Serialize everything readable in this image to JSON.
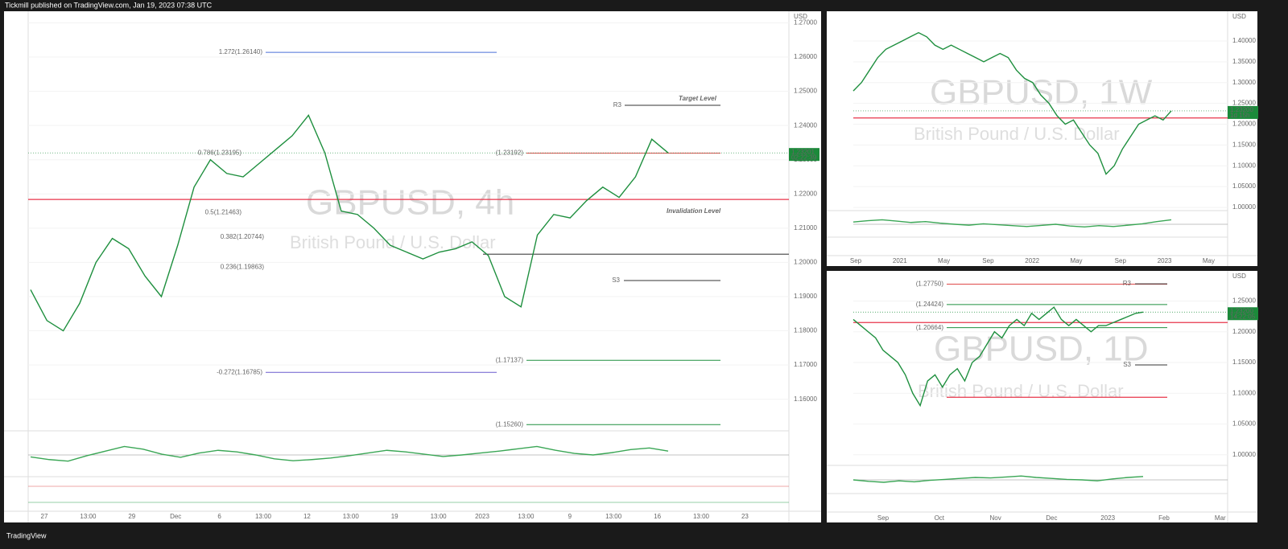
{
  "header": {
    "text": "Tickmill published on TradingView.com, Jan 19, 2023 07:38 UTC"
  },
  "footer": {
    "brand": "TradingView"
  },
  "chart_data": [
    {
      "type": "line",
      "title": "GBPUSD, 4h",
      "subtitle": "British Pound / U.S. Dollar",
      "currency": "USD",
      "color": "#1e8f3e",
      "values": [
        1.192,
        1.183,
        1.18,
        1.188,
        1.2,
        1.207,
        1.204,
        1.196,
        1.19,
        1.205,
        1.222,
        1.23,
        1.226,
        1.225,
        1.229,
        1.233,
        1.237,
        1.243,
        1.232,
        1.215,
        1.214,
        1.21,
        1.205,
        1.203,
        1.201,
        1.203,
        1.204,
        1.206,
        1.202,
        1.19,
        1.187,
        1.208,
        1.214,
        1.213,
        1.218,
        1.222,
        1.219,
        1.225,
        1.236,
        1.232
      ],
      "ylim": [
        1.151,
        1.2734
      ],
      "yticks": [
        {
          "value": 1.16,
          "label": "1.16000"
        },
        {
          "value": 1.17,
          "label": "1.17000"
        },
        {
          "value": 1.18,
          "label": "1.18000"
        },
        {
          "value": 1.19,
          "label": "1.19000"
        },
        {
          "value": 1.2,
          "label": "1.20000"
        },
        {
          "value": 1.21,
          "label": "1.21000"
        },
        {
          "value": 1.22,
          "label": "1.22000"
        },
        {
          "value": 1.23,
          "label": "1.23000"
        },
        {
          "value": 1.24,
          "label": "1.24000"
        },
        {
          "value": 1.25,
          "label": "1.25000"
        },
        {
          "value": 1.26,
          "label": "1.26000"
        },
        {
          "value": 1.27,
          "label": "1.27000"
        }
      ],
      "time_labels": [
        "27",
        "13:00",
        "29",
        "Dec",
        "6",
        "13:00",
        "12",
        "13:00",
        "19",
        "13:00",
        "2023",
        "13:00",
        "9",
        "13:00",
        "16",
        "13:00",
        "23"
      ],
      "last": {
        "value": 1.23201,
        "countdown": "02:22:39"
      },
      "levels": [
        {
          "value": 1.2184,
          "color": "#e8344a"
        },
        {
          "value": 1.2024,
          "color": "#555555"
        }
      ],
      "annotations": [
        {
          "label": "1.272(1.26140)",
          "value": 1.2614,
          "color": "#4a6fd8"
        },
        {
          "label": "0.786(1.23195)",
          "value": 1.23195,
          "color": "#e04a4a"
        },
        {
          "label": "(1.23192)",
          "value": 1.23192,
          "color": "#e04a4a"
        },
        {
          "label": "R3",
          "value": 1.2459,
          "color": "#333333"
        },
        {
          "label": "Target  Level",
          "value": 1.2478,
          "color": "#1fa84a"
        },
        {
          "label": "Invalidation Level",
          "value": 1.2149,
          "color": "#e0203c"
        },
        {
          "label": "0.5(1.21463)",
          "value": 1.2146,
          "color": "#8fbf8f"
        },
        {
          "label": "0.382(1.20744)",
          "value": 1.2074,
          "color": "#8a8acc"
        },
        {
          "label": "0.236(1.19863)",
          "value": 1.1986,
          "color": "#9999bb"
        },
        {
          "label": "S3",
          "value": 1.1947,
          "color": "#333333"
        },
        {
          "label": "(1.17137)",
          "value": 1.17137,
          "color": "#1e8f3e"
        },
        {
          "label": "-0.272(1.16785)",
          "value": 1.16785,
          "color": "#6a5acd"
        },
        {
          "label": "(1.15260)",
          "value": 1.1526,
          "color": "#1e8f3e"
        }
      ],
      "oscillator": {
        "ylim": [
          0,
          100
        ],
        "values": [
          45,
          38,
          34,
          48,
          60,
          72,
          65,
          52,
          44,
          55,
          62,
          58,
          50,
          40,
          35,
          38,
          42,
          48,
          55,
          62,
          58,
          52,
          46,
          50,
          55,
          60,
          66,
          72,
          62,
          54,
          50,
          56,
          64,
          68,
          60
        ]
      }
    },
    {
      "type": "line",
      "title": "GBPUSD, 1W",
      "subtitle": "British Pound / U.S. Dollar",
      "currency": "USD",
      "color": "#1e8f3e",
      "values": [
        1.28,
        1.3,
        1.33,
        1.36,
        1.38,
        1.39,
        1.4,
        1.41,
        1.42,
        1.41,
        1.39,
        1.38,
        1.39,
        1.38,
        1.37,
        1.36,
        1.35,
        1.36,
        1.37,
        1.36,
        1.33,
        1.31,
        1.3,
        1.27,
        1.25,
        1.22,
        1.2,
        1.21,
        1.18,
        1.15,
        1.13,
        1.08,
        1.1,
        1.14,
        1.17,
        1.2,
        1.21,
        1.22,
        1.21,
        1.232
      ],
      "ylim": [
        0.9923,
        1.4714
      ],
      "yticks": [
        {
          "value": 1.0,
          "label": "1.00000"
        },
        {
          "value": 1.05,
          "label": "1.05000"
        },
        {
          "value": 1.1,
          "label": "1.10000"
        },
        {
          "value": 1.15,
          "label": "1.15000"
        },
        {
          "value": 1.2,
          "label": "1.20000"
        },
        {
          "value": 1.25,
          "label": "1.25000"
        },
        {
          "value": 1.3,
          "label": "1.30000"
        },
        {
          "value": 1.35,
          "label": "1.35000"
        },
        {
          "value": 1.4,
          "label": "1.40000"
        }
      ],
      "time_labels": [
        "Sep",
        "2021",
        "May",
        "Sep",
        "2022",
        "May",
        "Sep",
        "2023",
        "May"
      ],
      "last": {
        "value": 1.232,
        "label": "1.23200",
        "countdown": "1d 15h"
      },
      "levels": [
        {
          "value": 1.215,
          "color": "#e8344a"
        }
      ],
      "annotations": [],
      "oscillator": {
        "ylim": [
          0,
          100
        ],
        "values": [
          60,
          66,
          70,
          64,
          58,
          62,
          55,
          50,
          46,
          52,
          48,
          44,
          40,
          45,
          50,
          42,
          38,
          44,
          40,
          46,
          52,
          62,
          70
        ]
      }
    },
    {
      "type": "line",
      "title": "GBPUSD, 1D",
      "subtitle": "British Pound / U.S. Dollar",
      "currency": "USD",
      "color": "#1e8f3e",
      "values": [
        1.22,
        1.21,
        1.2,
        1.19,
        1.17,
        1.16,
        1.15,
        1.13,
        1.1,
        1.08,
        1.12,
        1.13,
        1.11,
        1.13,
        1.14,
        1.12,
        1.15,
        1.16,
        1.18,
        1.2,
        1.19,
        1.21,
        1.22,
        1.21,
        1.23,
        1.22,
        1.23,
        1.24,
        1.22,
        1.21,
        1.22,
        1.21,
        1.2,
        1.21,
        1.21,
        1.215,
        1.22,
        1.225,
        1.23,
        1.232
      ],
      "ylim": [
        0.984,
        1.299
      ],
      "yticks": [
        {
          "value": 1.0,
          "label": "1.00000"
        },
        {
          "value": 1.05,
          "label": "1.05000"
        },
        {
          "value": 1.1,
          "label": "1.10000"
        },
        {
          "value": 1.15,
          "label": "1.15000"
        },
        {
          "value": 1.2,
          "label": "1.20000"
        },
        {
          "value": 1.25,
          "label": "1.25000"
        }
      ],
      "time_labels": [
        "Sep",
        "Oct",
        "Nov",
        "Dec",
        "2023",
        "Feb",
        "Mar"
      ],
      "last": {
        "value": 1.232,
        "label": "1.23200",
        "countdown": "14:22:05"
      },
      "levels": [
        {
          "value": 1.0935,
          "color": "#e8344a"
        },
        {
          "value": 1.215,
          "color": "#e8344a"
        }
      ],
      "annotations": [
        {
          "label": "(1.27750)",
          "value": 1.2775,
          "color": "#e04a4a"
        },
        {
          "label": "(1.24424)",
          "value": 1.24424,
          "color": "#1e8f3e"
        },
        {
          "label": "(1.20664)",
          "value": 1.20664,
          "color": "#1e8f3e"
        },
        {
          "label": "R3",
          "value": 1.278,
          "color": "#333333"
        },
        {
          "label": "S3",
          "value": 1.146,
          "color": "#333333"
        }
      ],
      "oscillator": {
        "ylim": [
          0,
          100
        ],
        "values": [
          50,
          44,
          40,
          46,
          42,
          48,
          52,
          56,
          60,
          58,
          62,
          66,
          60,
          56,
          52,
          50,
          46,
          54,
          60,
          64
        ]
      }
    }
  ]
}
